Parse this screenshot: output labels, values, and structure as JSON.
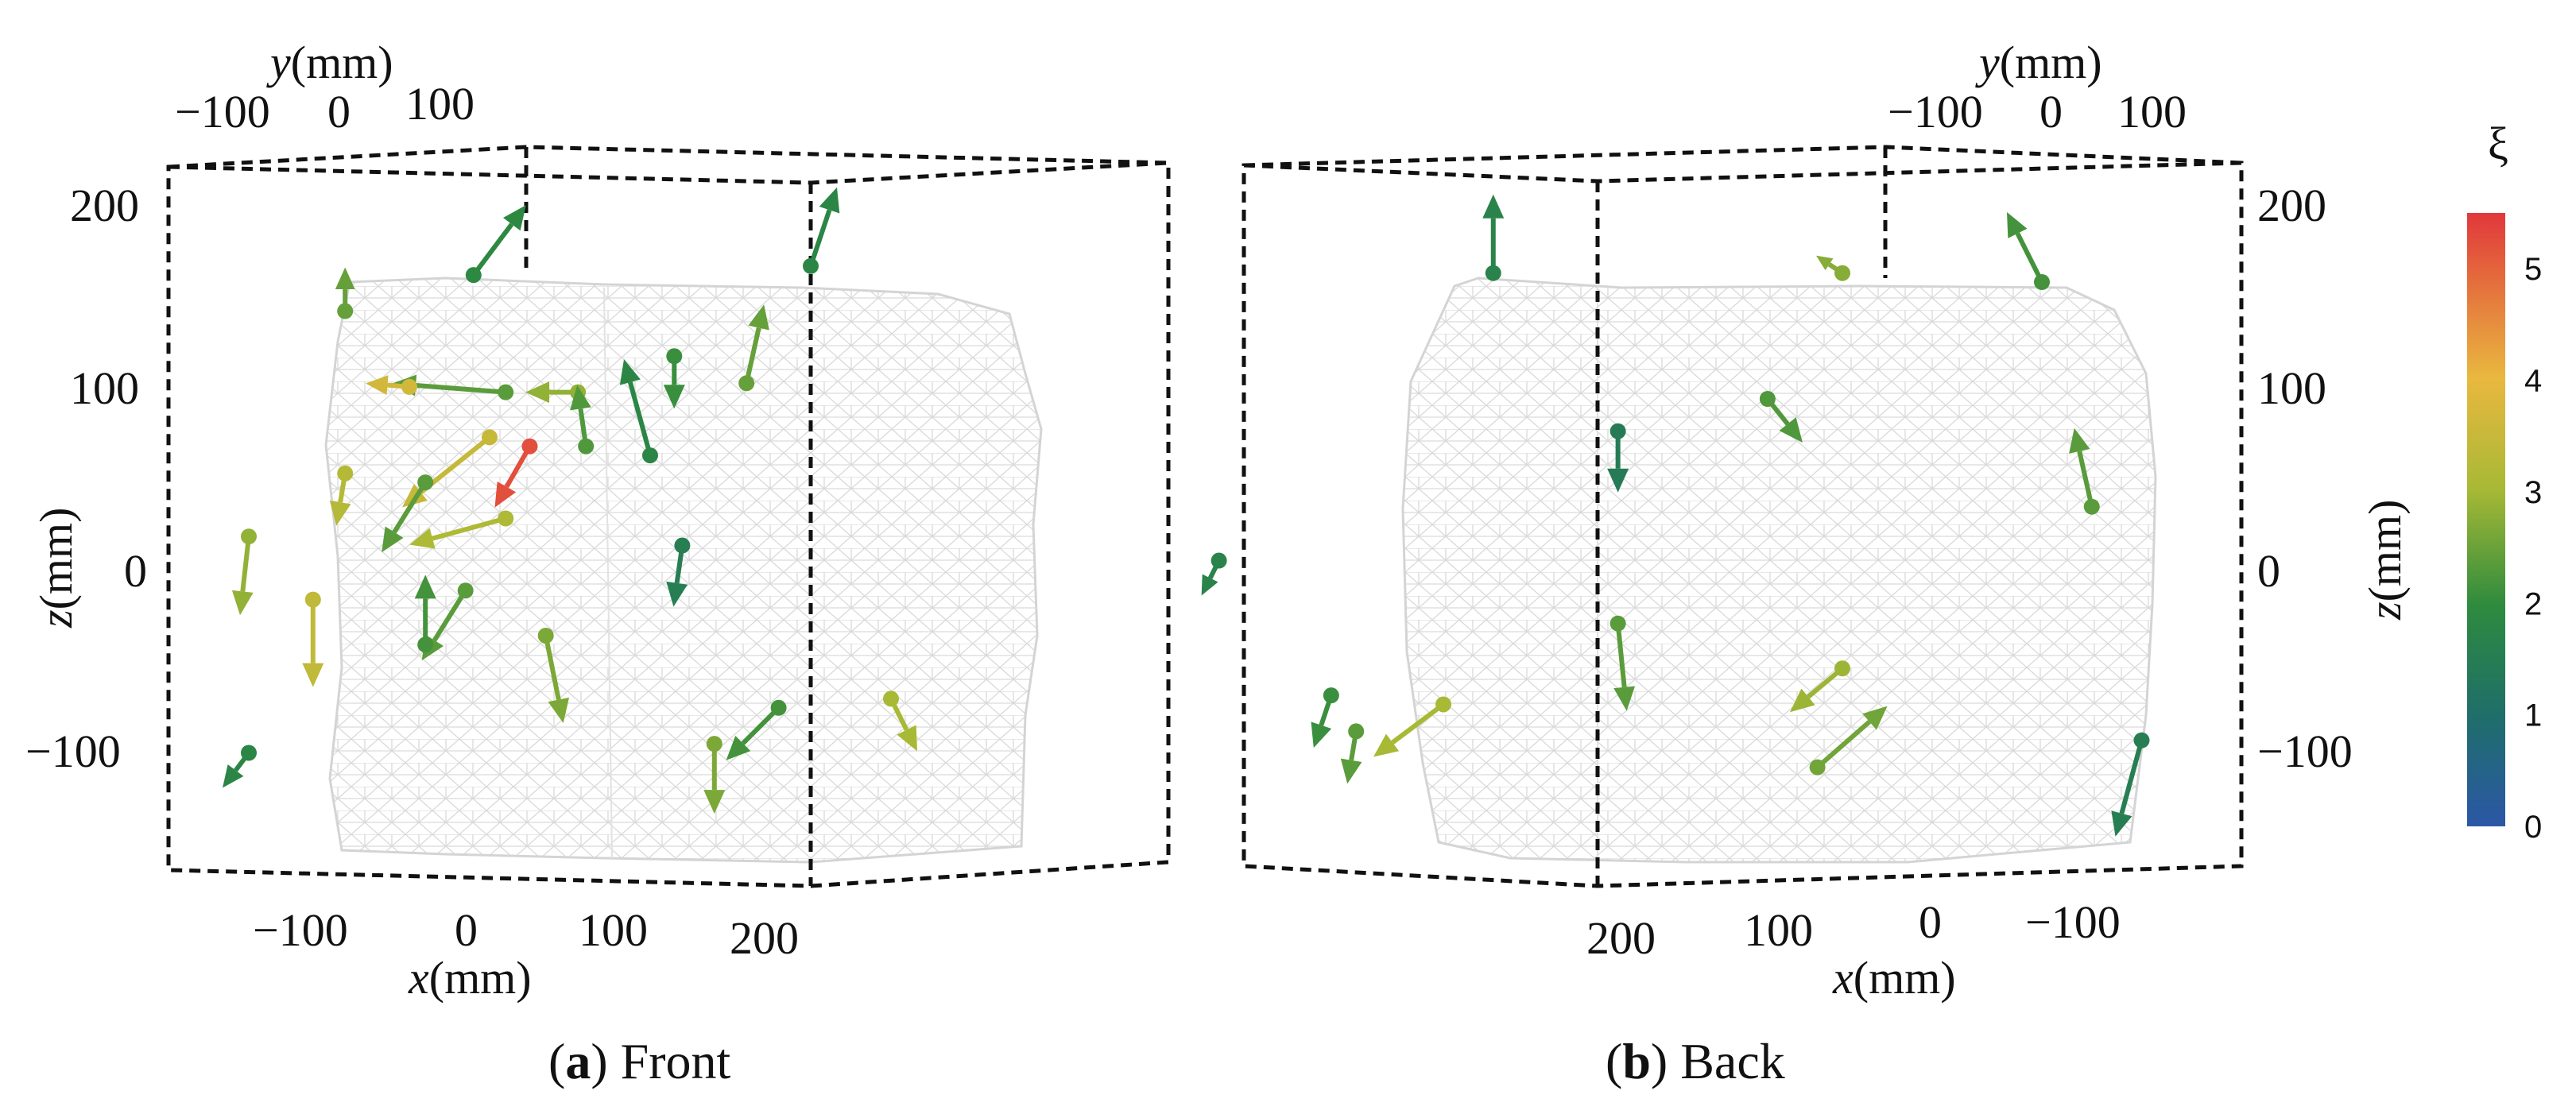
{
  "colorbar": {
    "label": "ξ",
    "ticks": [
      "0",
      "1",
      "2",
      "3",
      "4",
      "5"
    ],
    "range": [
      0,
      5.5
    ],
    "colors": [
      "#2b57a6",
      "#1f6e6a",
      "#2e8b3e",
      "#a8b935",
      "#e9b83f",
      "#e1383b"
    ]
  },
  "panels": [
    {
      "id": "front",
      "caption_letter": "a",
      "caption_text": "Front",
      "x_label_var": "x",
      "x_label_unit": "(mm)",
      "y_label_var": "y",
      "y_label_unit": "(mm)",
      "z_label_var": "z",
      "z_label_unit": "(mm)",
      "x_ticks": [
        "−100",
        "0",
        "100",
        "200"
      ],
      "y_ticks": [
        "−100",
        "0",
        "100"
      ],
      "z_ticks": [
        "200",
        "100",
        "0",
        "−100"
      ]
    },
    {
      "id": "back",
      "caption_letter": "b",
      "caption_text": "Back",
      "x_label_var": "x",
      "x_label_unit": "(mm)",
      "y_label_var": "y",
      "y_label_unit": "(mm)",
      "z_label_var": "z",
      "z_label_unit": "(mm)",
      "x_ticks": [
        "200",
        "100",
        "0",
        "−100"
      ],
      "y_ticks": [
        "−100",
        "0",
        "100"
      ],
      "z_ticks": [
        "200",
        "100",
        "0",
        "−100"
      ]
    }
  ],
  "chart_data": [
    {
      "type": "scatter",
      "view": "front",
      "axis_ranges": {
        "x": [
          -150,
          250
        ],
        "y": [
          -150,
          150
        ],
        "z": [
          -170,
          220
        ]
      },
      "grid": false,
      "arrows": [
        {
          "x": 40,
          "z": 160,
          "dx": 30,
          "dz": 40,
          "xi": 2.1
        },
        {
          "x": 250,
          "z": 165,
          "dx": 15,
          "dz": 45,
          "xi": 2.0
        },
        {
          "x": -40,
          "z": 140,
          "dx": 0,
          "dz": 25,
          "xi": 2.7
        },
        {
          "x": 60,
          "z": 95,
          "dx": -65,
          "dz": 5,
          "xi": 2.6
        },
        {
          "x": 0,
          "z": 98,
          "dx": -25,
          "dz": 2,
          "xi": 4.0
        },
        {
          "x": 105,
          "z": 95,
          "dx": -30,
          "dz": 0,
          "xi": 3.1
        },
        {
          "x": 110,
          "z": 65,
          "dx": -5,
          "dz": 35,
          "xi": 2.5
        },
        {
          "x": 165,
          "z": 115,
          "dx": 0,
          "dz": -30,
          "xi": 2.3
        },
        {
          "x": 210,
          "z": 100,
          "dx": 10,
          "dz": 45,
          "xi": 2.7
        },
        {
          "x": 150,
          "z": 60,
          "dx": -15,
          "dz": 55,
          "xi": 2.0
        },
        {
          "x": 75,
          "z": 65,
          "dx": -20,
          "dz": -35,
          "xi": 5.3
        },
        {
          "x": 50,
          "z": 70,
          "dx": -50,
          "dz": -40,
          "xi": 3.8
        },
        {
          "x": 10,
          "z": 45,
          "dx": -25,
          "dz": -40,
          "xi": 2.6
        },
        {
          "x": -40,
          "z": 50,
          "dx": -5,
          "dz": -30,
          "xi": 3.5
        },
        {
          "x": 60,
          "z": 25,
          "dx": -55,
          "dz": -15,
          "xi": 3.4
        },
        {
          "x": -100,
          "z": 15,
          "dx": -5,
          "dz": -45,
          "xi": 3.1
        },
        {
          "x": 170,
          "z": 10,
          "dx": -5,
          "dz": -35,
          "xi": 1.7
        },
        {
          "x": -60,
          "z": -20,
          "dx": 0,
          "dz": -50,
          "xi": 3.7
        },
        {
          "x": 35,
          "z": -15,
          "dx": -25,
          "dz": -40,
          "xi": 2.6
        },
        {
          "x": 10,
          "z": -45,
          "dx": 0,
          "dz": 40,
          "xi": 2.4
        },
        {
          "x": 85,
          "z": -40,
          "dx": 10,
          "dz": -50,
          "xi": 2.9
        },
        {
          "x": 230,
          "z": -80,
          "dx": -30,
          "dz": -30,
          "xi": 2.4
        },
        {
          "x": 190,
          "z": -100,
          "dx": 0,
          "dz": -40,
          "xi": 2.9
        },
        {
          "x": -100,
          "z": -105,
          "dx": -15,
          "dz": -20,
          "xi": 2.0
        },
        {
          "x": 300,
          "z": -75,
          "dx": 15,
          "dz": -30,
          "xi": 3.3
        }
      ]
    },
    {
      "type": "scatter",
      "view": "back",
      "axis_ranges": {
        "x": [
          250,
          -150
        ],
        "y": [
          -150,
          150
        ],
        "z": [
          -170,
          220
        ]
      },
      "grid": false,
      "arrows": [
        {
          "x": 150,
          "z": 160,
          "dx": 0,
          "dz": 45,
          "xi": 1.9
        },
        {
          "x": 10,
          "z": 160,
          "dx": 15,
          "dz": 10,
          "xi": 3.0
        },
        {
          "x": -70,
          "z": 155,
          "dx": 20,
          "dz": 40,
          "xi": 2.4
        },
        {
          "x": 40,
          "z": 90,
          "dx": -20,
          "dz": -25,
          "xi": 2.5
        },
        {
          "x": 100,
          "z": 72,
          "dx": 0,
          "dz": -35,
          "xi": 1.6
        },
        {
          "x": -90,
          "z": 30,
          "dx": 10,
          "dz": 45,
          "xi": 2.6
        },
        {
          "x": 260,
          "z": 0,
          "dx": 10,
          "dz": -20,
          "xi": 1.9
        },
        {
          "x": 100,
          "z": -35,
          "dx": -5,
          "dz": -50,
          "xi": 2.6
        },
        {
          "x": 215,
          "z": -75,
          "dx": 10,
          "dz": -30,
          "xi": 2.3
        },
        {
          "x": 205,
          "z": -95,
          "dx": 5,
          "dz": -30,
          "xi": 2.6
        },
        {
          "x": 170,
          "z": -80,
          "dx": 40,
          "dz": -30,
          "xi": 3.3
        },
        {
          "x": 10,
          "z": -60,
          "dx": 30,
          "dz": -25,
          "xi": 3.2
        },
        {
          "x": 20,
          "z": -115,
          "dx": -40,
          "dz": 35,
          "xi": 2.8
        },
        {
          "x": -110,
          "z": -100,
          "dx": 15,
          "dz": -55,
          "xi": 1.7
        }
      ]
    }
  ]
}
